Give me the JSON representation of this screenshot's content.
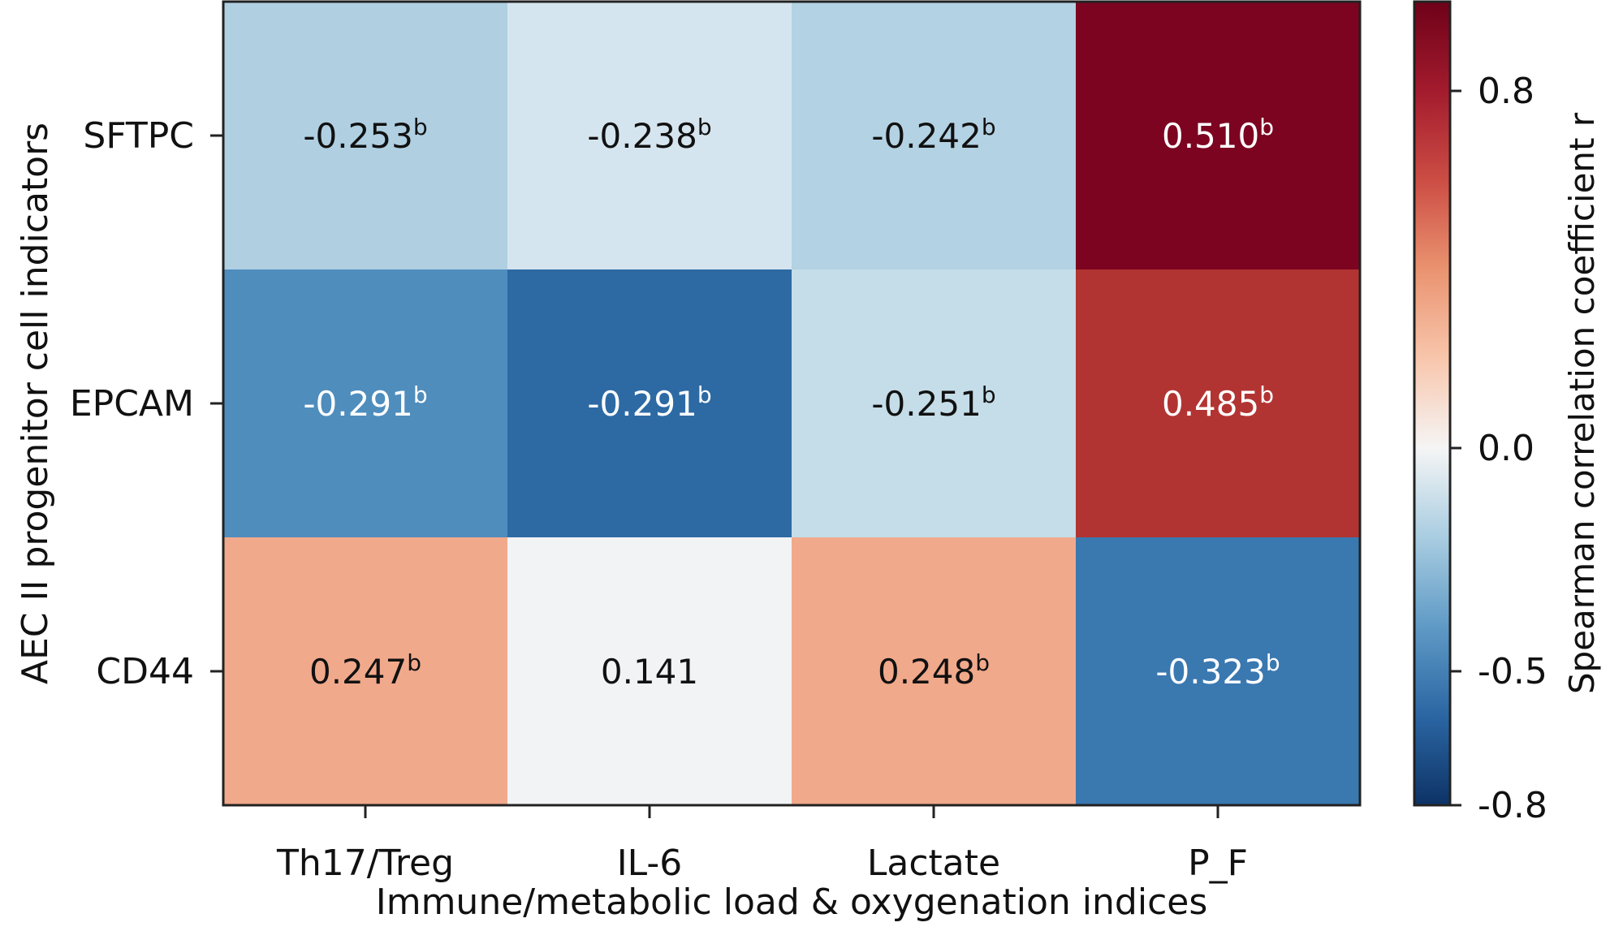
{
  "chart_data": {
    "type": "heatmap",
    "title": "",
    "xlabel": "Immune/metabolic load & oxygenation indices",
    "ylabel": "AEC II progenitor cell indicators",
    "x_categories": [
      "Th17/Treg",
      "IL-6",
      "Lactate",
      "P_F"
    ],
    "y_categories": [
      "SFTPC",
      "EPCAM",
      "CD44"
    ],
    "values": [
      [
        -0.253,
        -0.238,
        -0.242,
        0.51
      ],
      [
        -0.291,
        -0.291,
        -0.251,
        0.485
      ],
      [
        0.247,
        0.141,
        0.248,
        -0.323
      ]
    ],
    "labels": [
      [
        {
          "num": "-0.253",
          "sup": "b"
        },
        {
          "num": "-0.238",
          "sup": "b"
        },
        {
          "num": "-0.242",
          "sup": "b"
        },
        {
          "num": "0.510",
          "sup": "b"
        }
      ],
      [
        {
          "num": "-0.291",
          "sup": "b"
        },
        {
          "num": "-0.291",
          "sup": "b"
        },
        {
          "num": "-0.251",
          "sup": "b"
        },
        {
          "num": "0.485",
          "sup": "b"
        }
      ],
      [
        {
          "num": "0.247",
          "sup": "b"
        },
        {
          "num": "0.141",
          "sup": ""
        },
        {
          "num": "0.248",
          "sup": "b"
        },
        {
          "num": "-0.323",
          "sup": "b"
        }
      ]
    ],
    "cell_colors": [
      [
        "#b0d0e2",
        "#d5e5ef",
        "#b3d2e3",
        "#7c0420"
      ],
      [
        "#4f8dbd",
        "#2d6aa4",
        "#c4dde9",
        "#b23432"
      ],
      [
        "#f1a98b",
        "#f1f3f4",
        "#f1a98b",
        "#3a78b0"
      ]
    ],
    "text_colors": [
      [
        "#111111",
        "#111111",
        "#111111",
        "#ffffff"
      ],
      [
        "#ffffff",
        "#ffffff",
        "#111111",
        "#ffffff"
      ],
      [
        "#111111",
        "#111111",
        "#111111",
        "#ffffff"
      ]
    ],
    "colorbar": {
      "label": "Spearman correlation coefficient r",
      "range": [
        -0.8,
        1.0
      ],
      "ticks": [
        0.8,
        0.0,
        -0.5,
        -0.8
      ],
      "tick_labels": [
        "0.8",
        "0.0",
        "-0.5",
        "-0.8"
      ],
      "stops": [
        {
          "value": -0.8,
          "color": "#0d3366"
        },
        {
          "value": -0.6,
          "color": "#2b66a3"
        },
        {
          "value": -0.4,
          "color": "#5f9ac6"
        },
        {
          "value": -0.2,
          "color": "#a9cde1"
        },
        {
          "value": 0.0,
          "color": "#f5f5f5"
        },
        {
          "value": 0.2,
          "color": "#f8c6ac"
        },
        {
          "value": 0.4,
          "color": "#ea9370"
        },
        {
          "value": 0.6,
          "color": "#cc4d44"
        },
        {
          "value": 0.8,
          "color": "#a31b2d"
        },
        {
          "value": 1.0,
          "color": "#6e0119"
        }
      ]
    }
  }
}
